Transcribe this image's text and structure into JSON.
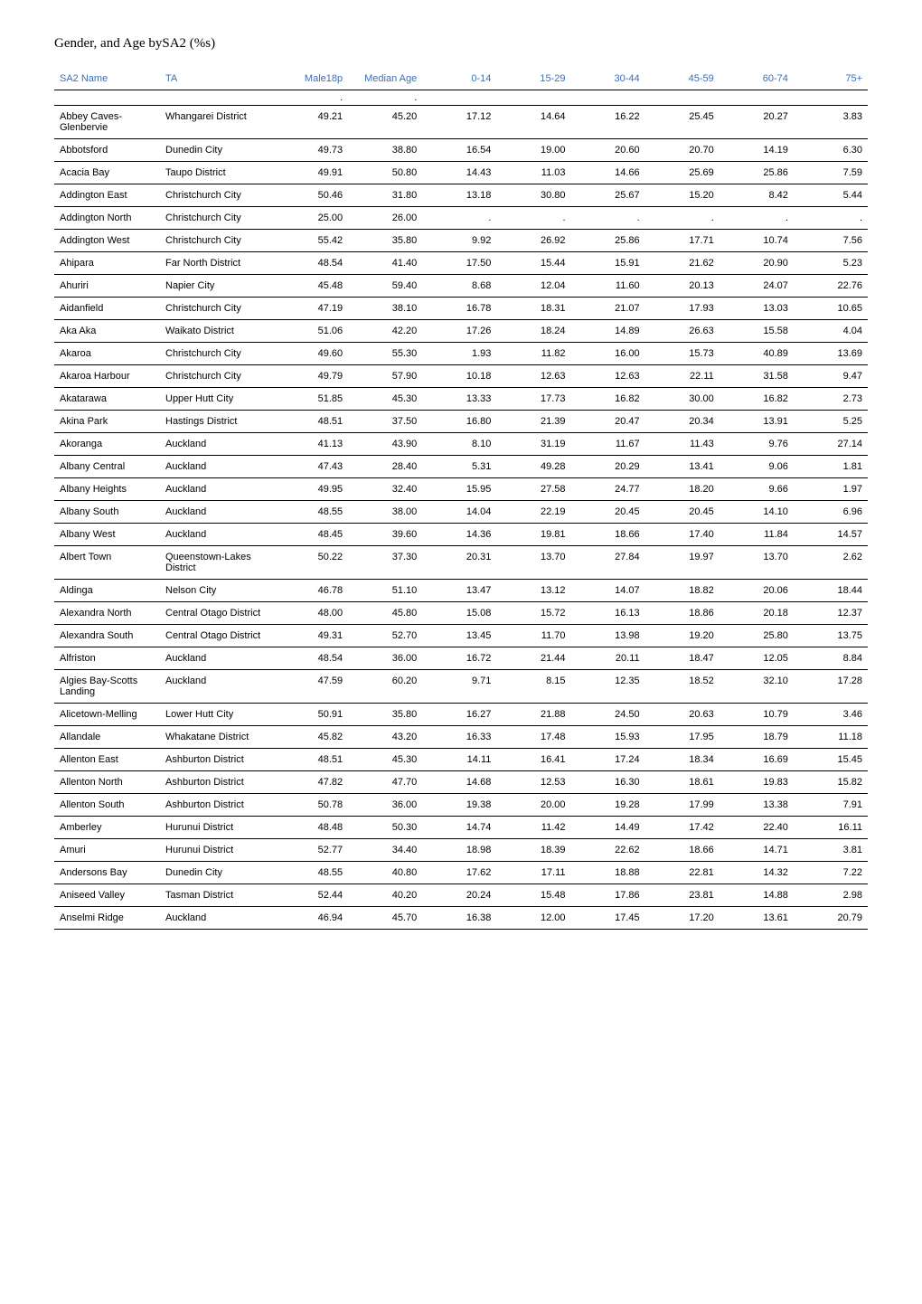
{
  "title": "Gender, and Age bySA2 (%s)",
  "columns": [
    "SA2 Name",
    "TA",
    "Male18p",
    "Median Age",
    "0-14",
    "15-29",
    "30-44",
    "45-59",
    "60-74",
    "75+"
  ],
  "column_align": [
    "left",
    "left",
    "right",
    "right",
    "right",
    "right",
    "right",
    "right",
    "right",
    "right"
  ],
  "font_family": "Arial, Helvetica, sans-serif",
  "title_font_family": "Times New Roman, Times, serif",
  "header_color": "#3b6fb6",
  "border_color": "#000000",
  "rows": [
    {
      "blank": true,
      "dots": [
        2,
        3
      ]
    },
    {
      "cells": [
        "Abbey Caves-Glenbervie",
        "Whangarei District",
        "49.21",
        "45.20",
        "17.12",
        "14.64",
        "16.22",
        "25.45",
        "20.27",
        "3.83"
      ]
    },
    {
      "cells": [
        "Abbotsford",
        "Dunedin City",
        "49.73",
        "38.80",
        "16.54",
        "19.00",
        "20.60",
        "20.70",
        "14.19",
        "6.30"
      ]
    },
    {
      "cells": [
        "Acacia Bay",
        "Taupo District",
        "49.91",
        "50.80",
        "14.43",
        "11.03",
        "14.66",
        "25.69",
        "25.86",
        "7.59"
      ]
    },
    {
      "cells": [
        "Addington East",
        "Christchurch City",
        "50.46",
        "31.80",
        "13.18",
        "30.80",
        "25.67",
        "15.20",
        "8.42",
        "5.44"
      ]
    },
    {
      "cells": [
        "Addington North",
        "Christchurch City",
        "25.00",
        "26.00",
        ".",
        ".",
        ".",
        ".",
        ".",
        "."
      ]
    },
    {
      "cells": [
        "Addington West",
        "Christchurch City",
        "55.42",
        "35.80",
        "9.92",
        "26.92",
        "25.86",
        "17.71",
        "10.74",
        "7.56"
      ]
    },
    {
      "cells": [
        "Ahipara",
        "Far North District",
        "48.54",
        "41.40",
        "17.50",
        "15.44",
        "15.91",
        "21.62",
        "20.90",
        "5.23"
      ]
    },
    {
      "cells": [
        "Ahuriri",
        "Napier City",
        "45.48",
        "59.40",
        "8.68",
        "12.04",
        "11.60",
        "20.13",
        "24.07",
        "22.76"
      ]
    },
    {
      "cells": [
        "Aidanfield",
        "Christchurch City",
        "47.19",
        "38.10",
        "16.78",
        "18.31",
        "21.07",
        "17.93",
        "13.03",
        "10.65"
      ]
    },
    {
      "cells": [
        "Aka Aka",
        "Waikato District",
        "51.06",
        "42.20",
        "17.26",
        "18.24",
        "14.89",
        "26.63",
        "15.58",
        "4.04"
      ]
    },
    {
      "cells": [
        "Akaroa",
        "Christchurch City",
        "49.60",
        "55.30",
        "1.93",
        "11.82",
        "16.00",
        "15.73",
        "40.89",
        "13.69"
      ]
    },
    {
      "cells": [
        "Akaroa Harbour",
        "Christchurch City",
        "49.79",
        "57.90",
        "10.18",
        "12.63",
        "12.63",
        "22.11",
        "31.58",
        "9.47"
      ]
    },
    {
      "cells": [
        "Akatarawa",
        "Upper Hutt City",
        "51.85",
        "45.30",
        "13.33",
        "17.73",
        "16.82",
        "30.00",
        "16.82",
        "2.73"
      ]
    },
    {
      "cells": [
        "Akina Park",
        "Hastings District",
        "48.51",
        "37.50",
        "16.80",
        "21.39",
        "20.47",
        "20.34",
        "13.91",
        "5.25"
      ]
    },
    {
      "cells": [
        "Akoranga",
        "Auckland",
        "41.13",
        "43.90",
        "8.10",
        "31.19",
        "11.67",
        "11.43",
        "9.76",
        "27.14"
      ]
    },
    {
      "cells": [
        "Albany Central",
        "Auckland",
        "47.43",
        "28.40",
        "5.31",
        "49.28",
        "20.29",
        "13.41",
        "9.06",
        "1.81"
      ]
    },
    {
      "cells": [
        "Albany Heights",
        "Auckland",
        "49.95",
        "32.40",
        "15.95",
        "27.58",
        "24.77",
        "18.20",
        "9.66",
        "1.97"
      ]
    },
    {
      "cells": [
        "Albany South",
        "Auckland",
        "48.55",
        "38.00",
        "14.04",
        "22.19",
        "20.45",
        "20.45",
        "14.10",
        "6.96"
      ]
    },
    {
      "cells": [
        "Albany West",
        "Auckland",
        "48.45",
        "39.60",
        "14.36",
        "19.81",
        "18.66",
        "17.40",
        "11.84",
        "14.57"
      ]
    },
    {
      "cells": [
        "Albert Town",
        "Queenstown-Lakes District",
        "50.22",
        "37.30",
        "20.31",
        "13.70",
        "27.84",
        "19.97",
        "13.70",
        "2.62"
      ]
    },
    {
      "cells": [
        "Aldinga",
        "Nelson City",
        "46.78",
        "51.10",
        "13.47",
        "13.12",
        "14.07",
        "18.82",
        "20.06",
        "18.44"
      ]
    },
    {
      "cells": [
        "Alexandra North",
        "Central Otago District",
        "48.00",
        "45.80",
        "15.08",
        "15.72",
        "16.13",
        "18.86",
        "20.18",
        "12.37"
      ]
    },
    {
      "cells": [
        "Alexandra South",
        "Central Otago District",
        "49.31",
        "52.70",
        "13.45",
        "11.70",
        "13.98",
        "19.20",
        "25.80",
        "13.75"
      ]
    },
    {
      "cells": [
        "Alfriston",
        "Auckland",
        "48.54",
        "36.00",
        "16.72",
        "21.44",
        "20.11",
        "18.47",
        "12.05",
        "8.84"
      ]
    },
    {
      "cells": [
        "Algies Bay-Scotts Landing",
        "Auckland",
        "47.59",
        "60.20",
        "9.71",
        "8.15",
        "12.35",
        "18.52",
        "32.10",
        "17.28"
      ]
    },
    {
      "cells": [
        "Alicetown-Melling",
        "Lower Hutt City",
        "50.91",
        "35.80",
        "16.27",
        "21.88",
        "24.50",
        "20.63",
        "10.79",
        "3.46"
      ]
    },
    {
      "cells": [
        "Allandale",
        "Whakatane District",
        "45.82",
        "43.20",
        "16.33",
        "17.48",
        "15.93",
        "17.95",
        "18.79",
        "11.18"
      ]
    },
    {
      "cells": [
        "Allenton East",
        "Ashburton District",
        "48.51",
        "45.30",
        "14.11",
        "16.41",
        "17.24",
        "18.34",
        "16.69",
        "15.45"
      ]
    },
    {
      "cells": [
        "Allenton North",
        "Ashburton District",
        "47.82",
        "47.70",
        "14.68",
        "12.53",
        "16.30",
        "18.61",
        "19.83",
        "15.82"
      ]
    },
    {
      "cells": [
        "Allenton South",
        "Ashburton District",
        "50.78",
        "36.00",
        "19.38",
        "20.00",
        "19.28",
        "17.99",
        "13.38",
        "7.91"
      ]
    },
    {
      "cells": [
        "Amberley",
        "Hurunui District",
        "48.48",
        "50.30",
        "14.74",
        "11.42",
        "14.49",
        "17.42",
        "22.40",
        "16.11"
      ]
    },
    {
      "cells": [
        "Amuri",
        "Hurunui District",
        "52.77",
        "34.40",
        "18.98",
        "18.39",
        "22.62",
        "18.66",
        "14.71",
        "3.81"
      ]
    },
    {
      "cells": [
        "Andersons Bay",
        "Dunedin City",
        "48.55",
        "40.80",
        "17.62",
        "17.11",
        "18.88",
        "22.81",
        "14.32",
        "7.22"
      ]
    },
    {
      "cells": [
        "Aniseed Valley",
        "Tasman District",
        "52.44",
        "40.20",
        "20.24",
        "15.48",
        "17.86",
        "23.81",
        "14.88",
        "2.98"
      ]
    },
    {
      "cells": [
        "Anselmi Ridge",
        "Auckland",
        "46.94",
        "45.70",
        "16.38",
        "12.00",
        "17.45",
        "17.20",
        "13.61",
        "20.79"
      ]
    }
  ]
}
